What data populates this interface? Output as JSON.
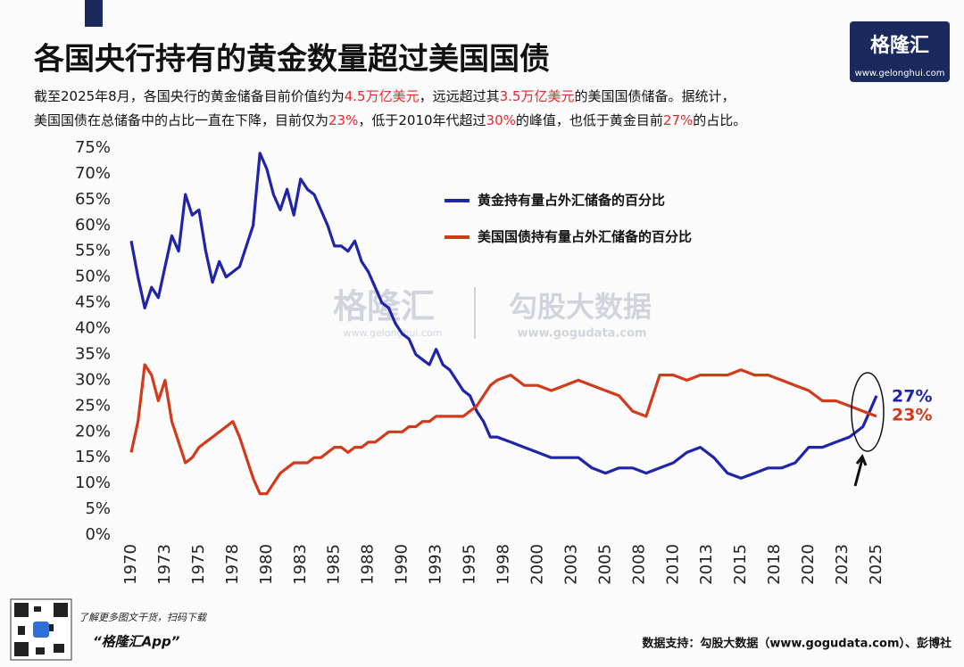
{
  "header": {
    "title": "各国央行持有的黄金数量超过美国国债",
    "subtitle_lines": [
      [
        {
          "text": "截至2025年8月，各国央行的黄金储备目前价值约为",
          "color": "#111111"
        },
        {
          "text": "4.5万亿美元",
          "color": "#e8262a"
        },
        {
          "text": "，远远超过其",
          "color": "#111111"
        },
        {
          "text": "3.5万亿美元",
          "color": "#e8262a"
        },
        {
          "text": "的美国国债储备。据统计，",
          "color": "#111111"
        }
      ],
      [
        {
          "text": "美国国债在总储备中的占比一直在下降，目前仅为",
          "color": "#111111"
        },
        {
          "text": "23%",
          "color": "#e8262a"
        },
        {
          "text": "，低于2010年代超过",
          "color": "#111111"
        },
        {
          "text": "30%",
          "color": "#e8262a"
        },
        {
          "text": "的峰值，也低于黄金目前",
          "color": "#111111"
        },
        {
          "text": "27%",
          "color": "#e8262a"
        },
        {
          "text": "的占比。",
          "color": "#111111"
        }
      ]
    ],
    "logo": "格隆汇",
    "logo_url": "www.gelonghui.com"
  },
  "watermark": {
    "left": "格隆汇",
    "left_url": "www.gelonghui.com",
    "right": "勾股大数据",
    "right_url": "www.gogudata.com"
  },
  "chart_data": {
    "type": "line",
    "x": [
      1970,
      1970.5,
      1971,
      1971.5,
      1972,
      1972.5,
      1973,
      1973.5,
      1974,
      1974.5,
      1975,
      1975.5,
      1976,
      1976.5,
      1977,
      1977.5,
      1978,
      1978.5,
      1979,
      1979.5,
      1980,
      1980.5,
      1981,
      1981.5,
      1982,
      1982.5,
      1983,
      1983.5,
      1984,
      1984.5,
      1985,
      1985.5,
      1986,
      1986.5,
      1987,
      1987.5,
      1988,
      1988.5,
      1989,
      1989.5,
      1990,
      1990.5,
      1991,
      1991.5,
      1992,
      1992.5,
      1993,
      1993.5,
      1994,
      1994.5,
      1995,
      1995.5,
      1996,
      1996.5,
      1997,
      1998,
      1999,
      2000,
      2001,
      2002,
      2003,
      2004,
      2005,
      2006,
      2007,
      2008,
      2009,
      2010,
      2011,
      2012,
      2013,
      2014,
      2015,
      2016,
      2017,
      2018,
      2019,
      2020,
      2021,
      2022,
      2023,
      2024,
      2025
    ],
    "series": [
      {
        "name": "黄金持有量占外汇储备的百分比",
        "color": "#1f24a8",
        "values": [
          57,
          50,
          44,
          48,
          46,
          52,
          58,
          55,
          66,
          62,
          63,
          55,
          49,
          53,
          50,
          51,
          52,
          56,
          60,
          74,
          71,
          66,
          63,
          67,
          62,
          69,
          67,
          66,
          63,
          60,
          56,
          56,
          55,
          57,
          53,
          51,
          48,
          45,
          44,
          41,
          39,
          38,
          35,
          34,
          33,
          36,
          33,
          32,
          30,
          28,
          27,
          24,
          22,
          19,
          19,
          18,
          17,
          16,
          15,
          15,
          15,
          13,
          12,
          13,
          13,
          12,
          13,
          14,
          16,
          17,
          15,
          12,
          11,
          12,
          13,
          13,
          14,
          17,
          17,
          18,
          19,
          21,
          27
        ]
      },
      {
        "name": "美国国债持有量占外汇储备的百分比",
        "color": "#d23a1c",
        "values": [
          16,
          22,
          33,
          31,
          26,
          30,
          22,
          18,
          14,
          15,
          17,
          18,
          19,
          20,
          21,
          22,
          19,
          15,
          11,
          8,
          8,
          10,
          12,
          13,
          14,
          14,
          14,
          15,
          15,
          16,
          17,
          17,
          16,
          17,
          17,
          18,
          18,
          19,
          20,
          20,
          20,
          21,
          21,
          22,
          22,
          23,
          23,
          23,
          23,
          23,
          24,
          25,
          27,
          29,
          30,
          31,
          29,
          29,
          28,
          29,
          30,
          29,
          28,
          27,
          24,
          23,
          31,
          31,
          30,
          31,
          31,
          31,
          32,
          31,
          31,
          30,
          29,
          28,
          26,
          26,
          25,
          24,
          23
        ]
      }
    ],
    "end_labels": [
      "27%",
      "23%"
    ],
    "xlim": [
      1969.5,
      2025.5
    ],
    "xticks": [
      1970,
      {
        "value": 1972.5,
        "label": "1973"
      },
      1975,
      {
        "value": 1977.5,
        "label": "1978"
      },
      1980,
      {
        "value": 1982.5,
        "label": "1983"
      },
      1985,
      {
        "value": 1987.5,
        "label": "1988"
      },
      1990,
      {
        "value": 1992.5,
        "label": "1993"
      },
      1995,
      {
        "value": 1997.5,
        "label": "1998"
      },
      2000,
      {
        "value": 2002.5,
        "label": "2003"
      },
      2005,
      {
        "value": 2007.5,
        "label": "2008"
      },
      2010,
      {
        "value": 2012.5,
        "label": "2013"
      },
      2015,
      {
        "value": 2017.5,
        "label": "2018"
      },
      2020,
      {
        "value": 2022.5,
        "label": "2023"
      },
      2025
    ],
    "ylim": [
      0,
      75
    ],
    "yticks": [
      {
        "value": 0,
        "label": "0%"
      },
      {
        "value": 5,
        "label": "5%"
      },
      {
        "value": 10,
        "label": "10%"
      },
      {
        "value": 15,
        "label": "15%"
      },
      {
        "value": 20,
        "label": "20%"
      },
      {
        "value": 25,
        "label": "25%"
      },
      {
        "value": 30,
        "label": "30%"
      },
      {
        "value": 35,
        "label": "35%"
      },
      {
        "value": 40,
        "label": "40%"
      },
      {
        "value": 45,
        "label": "45%"
      },
      {
        "value": 50,
        "label": "50%"
      },
      {
        "value": 55,
        "label": "55%"
      },
      {
        "value": 60,
        "label": "60%"
      },
      {
        "value": 65,
        "label": "65%"
      },
      {
        "value": 70,
        "label": "70%"
      },
      {
        "value": 75,
        "label": "75%"
      }
    ],
    "grid": false
  },
  "footer": {
    "promo": "了解更多图文干货，扫码下载",
    "app": "“格隆汇App”",
    "source": "数据支持：勾股大数据（www.gogudata.com）、彭博社"
  }
}
